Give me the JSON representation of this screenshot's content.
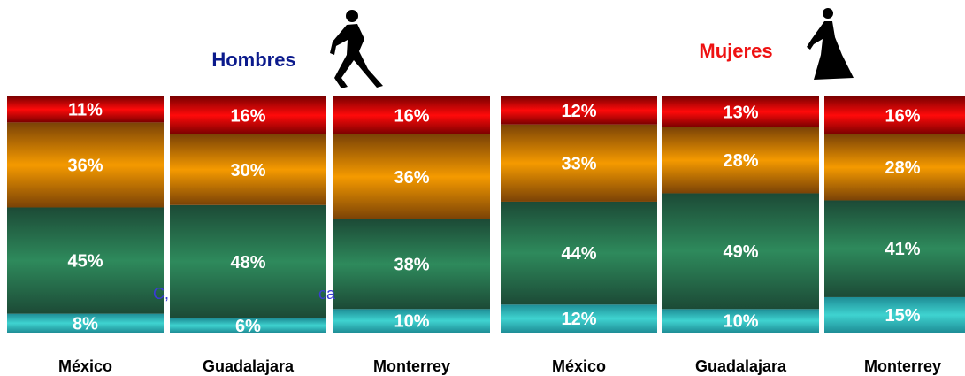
{
  "chart_data": [
    {
      "type": "bar",
      "stacked": true,
      "title": "Hombres",
      "title_color": "#0b1a8c",
      "categories": [
        "México",
        "Guadalajara",
        "Monterrey"
      ],
      "series": [
        {
          "values": [
            8,
            6,
            10
          ],
          "labels": [
            "8%",
            "6%",
            "10%"
          ]
        },
        {
          "values": [
            45,
            48,
            38
          ],
          "labels": [
            "45%",
            "48%",
            "38%"
          ]
        },
        {
          "values": [
            36,
            30,
            36
          ],
          "labels": [
            "36%",
            "30%",
            "36%"
          ]
        },
        {
          "values": [
            11,
            16,
            16
          ],
          "labels": [
            "11%",
            "16%",
            "16%"
          ]
        }
      ],
      "ylim": [
        0,
        100
      ],
      "icon": "walking-man-icon"
    },
    {
      "type": "bar",
      "stacked": true,
      "title": "Mujeres",
      "title_color": "#ee1111",
      "categories": [
        "México",
        "Guadalajara",
        "Monterrey"
      ],
      "series": [
        {
          "values": [
            12,
            10,
            15
          ],
          "labels": [
            "12%",
            "10%",
            "15%"
          ]
        },
        {
          "values": [
            44,
            49,
            41
          ],
          "labels": [
            "44%",
            "49%",
            "41%"
          ]
        },
        {
          "values": [
            33,
            28,
            28
          ],
          "labels": [
            "33%",
            "28%",
            "28%"
          ]
        },
        {
          "values": [
            12,
            13,
            16
          ],
          "labels": [
            "12%",
            "13%",
            "16%"
          ]
        }
      ],
      "ylim": [
        0,
        100
      ],
      "icon": "walking-woman-icon"
    }
  ],
  "segment_colors": {
    "bottom": {
      "top": "#1e8d96",
      "mid": "#3fd3d0"
    },
    "green": {
      "top": "#1c4a36",
      "mid": "#2e8a5c"
    },
    "orange": {
      "top": "#7a4206",
      "mid": "#f59a00"
    },
    "red": {
      "top": "#7a0000",
      "mid": "#ff0a0a"
    }
  },
  "stray_text": [
    "C,",
    "ca"
  ]
}
